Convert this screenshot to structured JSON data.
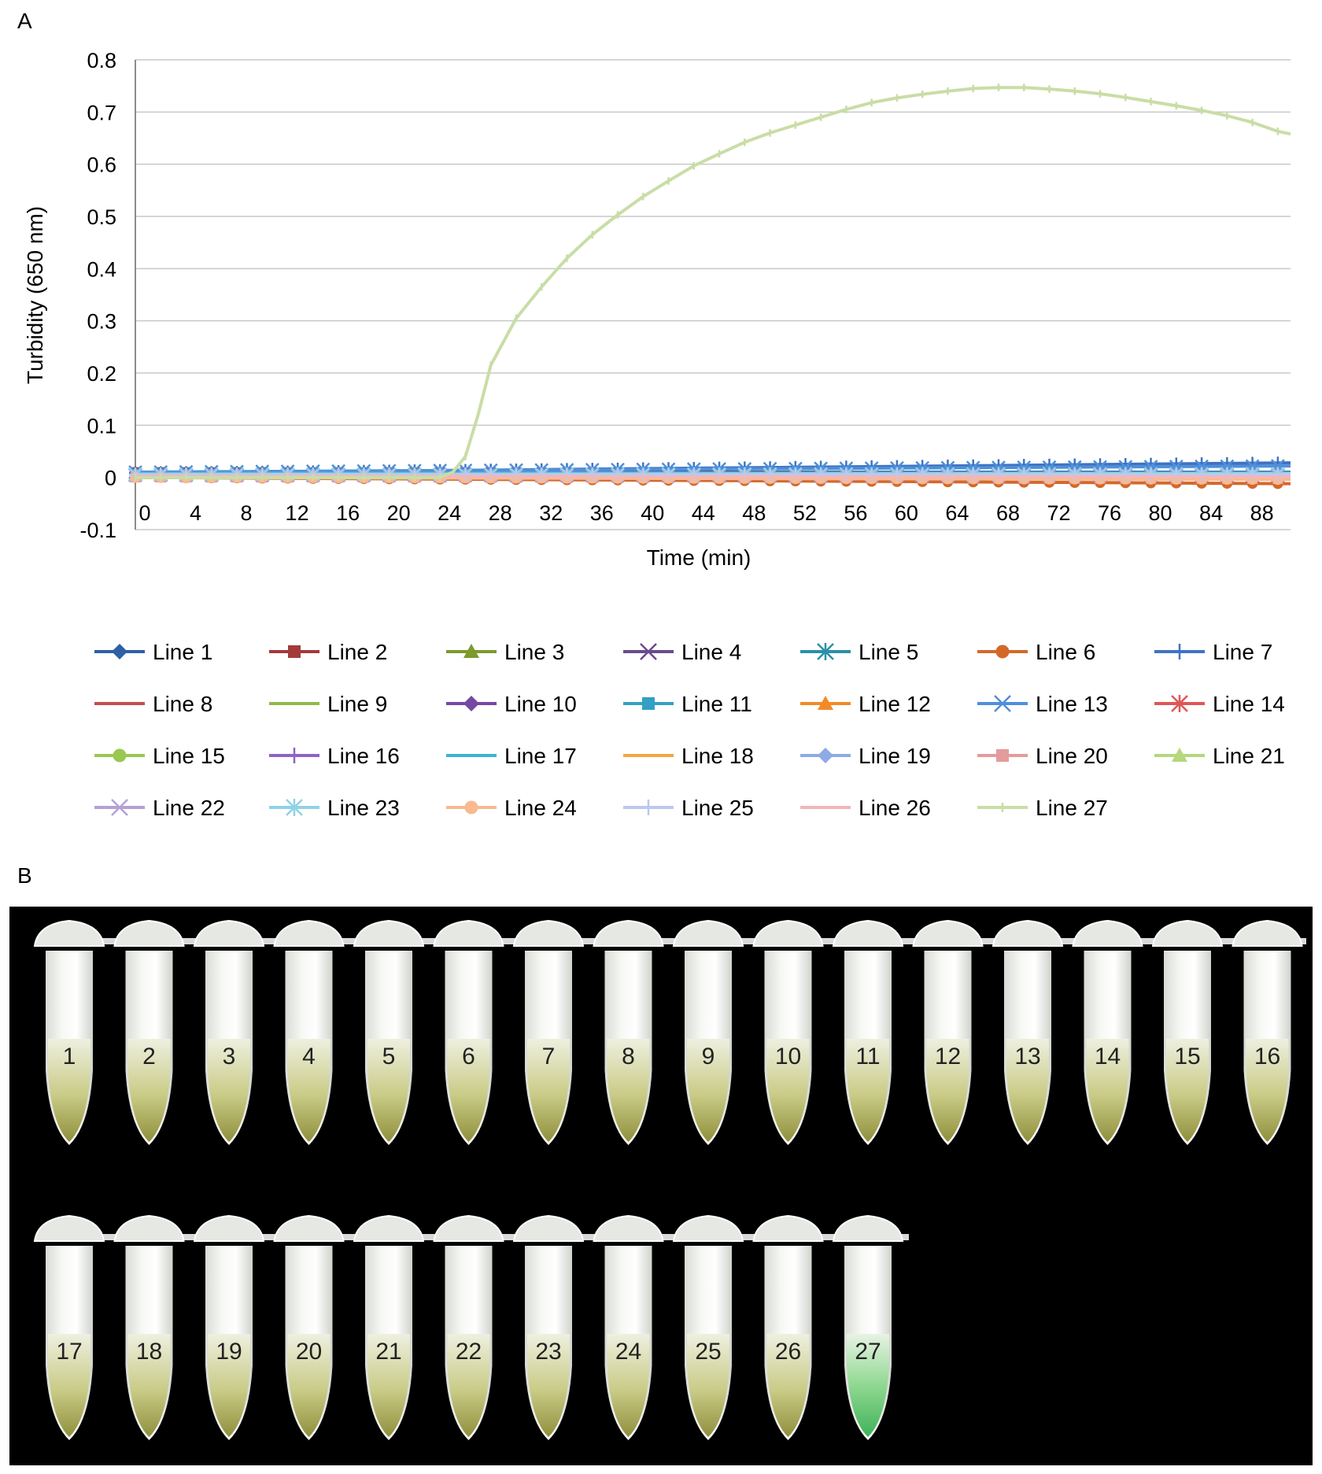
{
  "panels": {
    "a": "A",
    "b": "B"
  },
  "chart_data": {
    "type": "line",
    "title": "",
    "xlabel": "Time (min)",
    "ylabel": "Turbidity (650 nm)",
    "xlim": [
      0,
      91
    ],
    "ylim": [
      -0.1,
      0.8
    ],
    "x_ticks": [
      "0",
      "4",
      "8",
      "12",
      "16",
      "20",
      "24",
      "28",
      "32",
      "36",
      "40",
      "44",
      "48",
      "52",
      "56",
      "60",
      "64",
      "68",
      "72",
      "76",
      "80",
      "84",
      "88"
    ],
    "y_ticks": [
      "0.8",
      "0.7",
      "0.6",
      "0.5",
      "0.4",
      "0.3",
      "0.2",
      "0.1",
      "0",
      "-0.1"
    ],
    "grid": true,
    "legend_position": "bottom",
    "series": [
      {
        "name": "Line 1",
        "color": "#2f5fa7",
        "marker": "diamond",
        "points": [
          [
            0,
            0.01
          ],
          [
            91,
            0.01
          ]
        ]
      },
      {
        "name": "Line 2",
        "color": "#a33a3a",
        "marker": "square",
        "points": [
          [
            0,
            0.01
          ],
          [
            91,
            0.008
          ]
        ]
      },
      {
        "name": "Line 3",
        "color": "#7c9a2d",
        "marker": "triangle",
        "points": [
          [
            0,
            0.005
          ],
          [
            91,
            0.003
          ]
        ]
      },
      {
        "name": "Line 4",
        "color": "#6a4b8c",
        "marker": "x",
        "points": [
          [
            0,
            0.005
          ],
          [
            91,
            0.004
          ]
        ]
      },
      {
        "name": "Line 5",
        "color": "#2b90a8",
        "marker": "star",
        "points": [
          [
            0,
            0.006
          ],
          [
            91,
            0.005
          ]
        ]
      },
      {
        "name": "Line 6",
        "color": "#d2692b",
        "marker": "circle",
        "points": [
          [
            0,
            0.0
          ],
          [
            91,
            -0.012
          ]
        ]
      },
      {
        "name": "Line 7",
        "color": "#3f73c2",
        "marker": "plus",
        "points": [
          [
            0,
            0.008
          ],
          [
            91,
            0.028
          ]
        ]
      },
      {
        "name": "Line 8",
        "color": "#c0504d",
        "marker": "none",
        "points": [
          [
            0,
            0.003
          ],
          [
            91,
            0.0
          ]
        ]
      },
      {
        "name": "Line 9",
        "color": "#8fba4b",
        "marker": "none",
        "points": [
          [
            0,
            0.004
          ],
          [
            91,
            0.001
          ]
        ]
      },
      {
        "name": "Line 10",
        "color": "#7548a3",
        "marker": "diamond",
        "points": [
          [
            0,
            0.005
          ],
          [
            91,
            0.004
          ]
        ]
      },
      {
        "name": "Line 11",
        "color": "#33a0c4",
        "marker": "square",
        "points": [
          [
            0,
            0.007
          ],
          [
            91,
            0.006
          ]
        ]
      },
      {
        "name": "Line 12",
        "color": "#f28a28",
        "marker": "triangle",
        "points": [
          [
            0,
            0.002
          ],
          [
            91,
            -0.002
          ]
        ]
      },
      {
        "name": "Line 13",
        "color": "#4f8fdb",
        "marker": "x",
        "points": [
          [
            0,
            0.01
          ],
          [
            91,
            0.022
          ]
        ]
      },
      {
        "name": "Line 14",
        "color": "#e05656",
        "marker": "star",
        "points": [
          [
            0,
            0.004
          ],
          [
            91,
            0.002
          ]
        ]
      },
      {
        "name": "Line 15",
        "color": "#99c851",
        "marker": "circle",
        "points": [
          [
            0,
            0.003
          ],
          [
            91,
            0.001
          ]
        ]
      },
      {
        "name": "Line 16",
        "color": "#8e63c7",
        "marker": "plus",
        "points": [
          [
            0,
            0.005
          ],
          [
            91,
            0.004
          ]
        ]
      },
      {
        "name": "Line 17",
        "color": "#3cb4d6",
        "marker": "none",
        "points": [
          [
            0,
            0.008
          ],
          [
            91,
            0.009
          ]
        ]
      },
      {
        "name": "Line 18",
        "color": "#f7a440",
        "marker": "none",
        "points": [
          [
            0,
            0.002
          ],
          [
            91,
            0.0
          ]
        ]
      },
      {
        "name": "Line 19",
        "color": "#8eaae5",
        "marker": "diamond",
        "points": [
          [
            0,
            0.006
          ],
          [
            91,
            0.007
          ]
        ]
      },
      {
        "name": "Line 20",
        "color": "#e59b9b",
        "marker": "square",
        "points": [
          [
            0,
            0.0
          ],
          [
            91,
            -0.003
          ]
        ]
      },
      {
        "name": "Line 21",
        "color": "#b5d77d",
        "marker": "triangle",
        "points": [
          [
            0,
            0.003
          ],
          [
            91,
            0.002
          ]
        ]
      },
      {
        "name": "Line 22",
        "color": "#b3a1d8",
        "marker": "x",
        "points": [
          [
            0,
            0.004
          ],
          [
            91,
            0.004
          ]
        ]
      },
      {
        "name": "Line 23",
        "color": "#8fd2e8",
        "marker": "star",
        "points": [
          [
            0,
            0.006
          ],
          [
            91,
            0.007
          ]
        ]
      },
      {
        "name": "Line 24",
        "color": "#f9b991",
        "marker": "circle",
        "points": [
          [
            0,
            0.0
          ],
          [
            91,
            -0.004
          ]
        ]
      },
      {
        "name": "Line 25",
        "color": "#bcc8f0",
        "marker": "plus",
        "points": [
          [
            0,
            0.005
          ],
          [
            91,
            0.005
          ]
        ]
      },
      {
        "name": "Line 26",
        "color": "#f2b6b6",
        "marker": "none",
        "points": [
          [
            0,
            0.002
          ],
          [
            91,
            0.001
          ]
        ]
      },
      {
        "name": "Line 27",
        "color": "#c9dda6",
        "marker": "dash",
        "points": [
          [
            0,
            0.0
          ],
          [
            24,
            0.0
          ],
          [
            25,
            0.01
          ],
          [
            26,
            0.04
          ],
          [
            27,
            0.12
          ],
          [
            28,
            0.215
          ],
          [
            30,
            0.305
          ],
          [
            32,
            0.365
          ],
          [
            34,
            0.42
          ],
          [
            36,
            0.465
          ],
          [
            38,
            0.503
          ],
          [
            40,
            0.538
          ],
          [
            42,
            0.568
          ],
          [
            44,
            0.597
          ],
          [
            46,
            0.62
          ],
          [
            48,
            0.642
          ],
          [
            50,
            0.66
          ],
          [
            52,
            0.675
          ],
          [
            54,
            0.69
          ],
          [
            56,
            0.705
          ],
          [
            58,
            0.718
          ],
          [
            60,
            0.727
          ],
          [
            62,
            0.734
          ],
          [
            64,
            0.74
          ],
          [
            66,
            0.745
          ],
          [
            68,
            0.747
          ],
          [
            70,
            0.747
          ],
          [
            72,
            0.744
          ],
          [
            74,
            0.74
          ],
          [
            76,
            0.735
          ],
          [
            78,
            0.728
          ],
          [
            80,
            0.72
          ],
          [
            82,
            0.712
          ],
          [
            84,
            0.703
          ],
          [
            86,
            0.693
          ],
          [
            88,
            0.68
          ],
          [
            90,
            0.663
          ],
          [
            91,
            0.658
          ]
        ]
      }
    ]
  },
  "photo": {
    "row1_labels": [
      "1",
      "2",
      "3",
      "4",
      "5",
      "6",
      "7",
      "8",
      "9",
      "10",
      "11",
      "12",
      "13",
      "14",
      "15",
      "16"
    ],
    "row2_labels": [
      "17",
      "18",
      "19",
      "20",
      "21",
      "22",
      "23",
      "24",
      "25",
      "26",
      "27"
    ],
    "positive_tube": "27",
    "colors": {
      "background": "#000000",
      "negative_liquid": "#b9bc5c",
      "positive_liquid": "#63c46e"
    }
  }
}
